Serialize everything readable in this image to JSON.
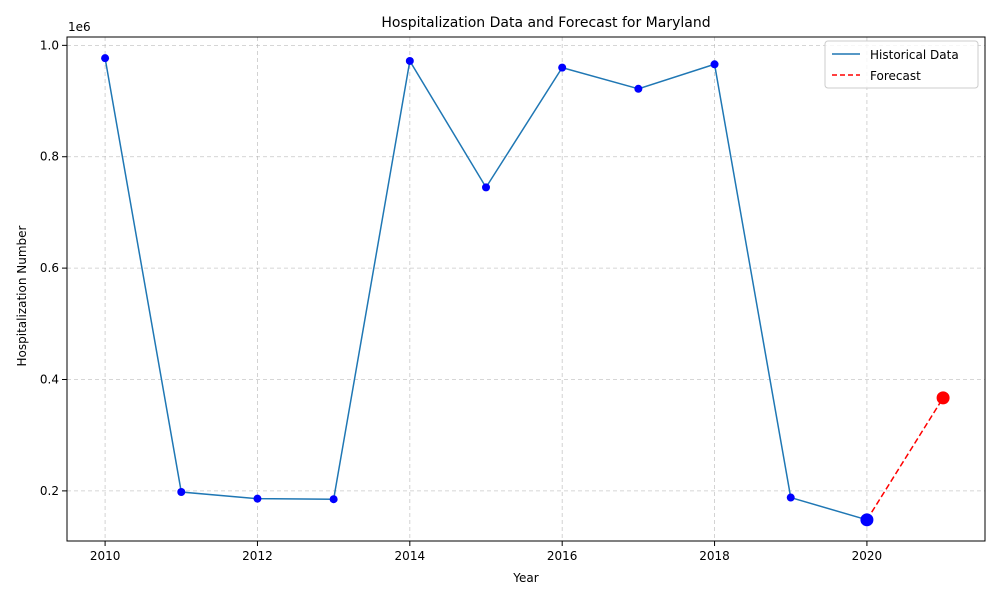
{
  "chart_data": {
    "type": "line",
    "title": "Hospitalization Data and Forecast for Maryland",
    "xlabel": "Year",
    "ylabel": "Hospitalization Number",
    "y_scale_label": "1e6",
    "xlim": [
      2009.5,
      2021.55
    ],
    "ylim": [
      110000,
      1015000
    ],
    "x_ticks": [
      2010,
      2012,
      2014,
      2016,
      2018,
      2020
    ],
    "x_tick_labels": [
      "2010",
      "2012",
      "2014",
      "2016",
      "2018",
      "2020"
    ],
    "y_ticks": [
      200000,
      400000,
      600000,
      800000,
      1000000
    ],
    "y_tick_labels": [
      "0.2",
      "0.4",
      "0.6",
      "0.8",
      "1.0"
    ],
    "grid": true,
    "legend_position": "top-right",
    "series": [
      {
        "name": "Historical Data",
        "color": "#1f77b4",
        "style": "solid",
        "marker_color": "#0000ff",
        "x": [
          2010,
          2011,
          2012,
          2013,
          2014,
          2015,
          2016,
          2017,
          2018,
          2019,
          2020
        ],
        "y": [
          977000,
          198000,
          186000,
          185000,
          972000,
          745000,
          960000,
          922000,
          966000,
          188000,
          148000
        ]
      },
      {
        "name": "Forecast",
        "color": "#ff0000",
        "style": "dashed",
        "marker_color": "#ff0000",
        "x": [
          2020,
          2021
        ],
        "y": [
          148000,
          367000
        ]
      }
    ],
    "highlight_points": [
      {
        "x": 2020,
        "y": 148000,
        "color": "#0000ff"
      },
      {
        "x": 2021,
        "y": 367000,
        "color": "#ff0000"
      }
    ]
  }
}
